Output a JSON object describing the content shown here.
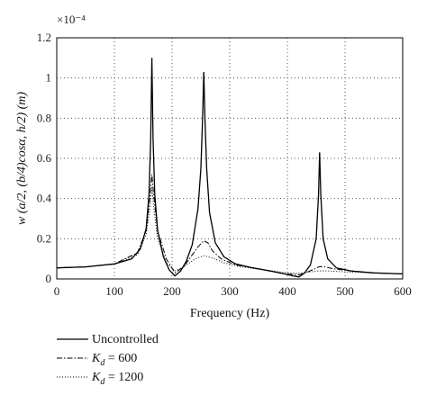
{
  "chart_data": {
    "type": "line",
    "xlabel": "Frequency (Hz)",
    "ylabel": "w (a/2, (b/4)cosα, h/2) (m)",
    "y_multiplier": "×10⁻⁴",
    "xlim": [
      0,
      600
    ],
    "ylim": [
      0,
      1.2
    ],
    "x_ticks": [
      "0",
      "100",
      "200",
      "300",
      "400",
      "500",
      "600"
    ],
    "y_ticks": [
      "0",
      "0.2",
      "0.4",
      "0.6",
      "0.8",
      "1",
      "1.2"
    ],
    "grid": true,
    "legend_placement": "below",
    "series": [
      {
        "name": "Uncontrolled",
        "style": "solid",
        "x": [
          0,
          50,
          100,
          130,
          145,
          155,
          160,
          163,
          165,
          167,
          170,
          175,
          185,
          195,
          205,
          215,
          225,
          235,
          245,
          250,
          253,
          255,
          257,
          260,
          265,
          275,
          290,
          310,
          340,
          370,
          395,
          410,
          420,
          430,
          440,
          450,
          454,
          456,
          458,
          462,
          470,
          485,
          510,
          550,
          600
        ],
        "y": [
          0.055,
          0.06,
          0.075,
          0.1,
          0.15,
          0.25,
          0.42,
          0.7,
          1.1,
          0.7,
          0.42,
          0.24,
          0.11,
          0.045,
          0.015,
          0.04,
          0.09,
          0.17,
          0.35,
          0.55,
          0.8,
          1.03,
          0.8,
          0.55,
          0.33,
          0.18,
          0.11,
          0.075,
          0.055,
          0.04,
          0.025,
          0.015,
          0.01,
          0.03,
          0.07,
          0.2,
          0.42,
          0.63,
          0.42,
          0.2,
          0.1,
          0.055,
          0.04,
          0.03,
          0.025
        ]
      },
      {
        "name": "K_d = 600",
        "style": "dashdot",
        "x": [
          0,
          50,
          100,
          140,
          155,
          162,
          165,
          168,
          175,
          190,
          205,
          220,
          235,
          245,
          255,
          262,
          270,
          285,
          310,
          350,
          395,
          420,
          435,
          448,
          456,
          465,
          480,
          510,
          550,
          600
        ],
        "y": [
          0.055,
          0.06,
          0.075,
          0.13,
          0.24,
          0.42,
          0.52,
          0.42,
          0.24,
          0.1,
          0.03,
          0.06,
          0.12,
          0.16,
          0.19,
          0.18,
          0.14,
          0.1,
          0.07,
          0.05,
          0.025,
          0.02,
          0.035,
          0.05,
          0.062,
          0.06,
          0.05,
          0.04,
          0.03,
          0.025
        ]
      },
      {
        "name": "K_d = 1200",
        "style": "dotted",
        "x": [
          0,
          50,
          100,
          140,
          155,
          162,
          165,
          168,
          175,
          190,
          205,
          220,
          240,
          255,
          270,
          290,
          320,
          360,
          400,
          420,
          440,
          456,
          470,
          500,
          550,
          600
        ],
        "y": [
          0.055,
          0.06,
          0.075,
          0.12,
          0.22,
          0.36,
          0.46,
          0.36,
          0.2,
          0.08,
          0.04,
          0.06,
          0.1,
          0.115,
          0.105,
          0.08,
          0.06,
          0.045,
          0.03,
          0.028,
          0.035,
          0.04,
          0.04,
          0.035,
          0.03,
          0.025
        ]
      }
    ],
    "legend": [
      {
        "label_main": "Uncontrolled",
        "label_sub": "",
        "label_rest": "",
        "style": "solid"
      },
      {
        "label_main": "K",
        "label_sub": "d",
        "label_rest": " = 600",
        "style": "dashdot"
      },
      {
        "label_main": "K",
        "label_sub": "d",
        "label_rest": " = 1200",
        "style": "dotted"
      }
    ]
  }
}
